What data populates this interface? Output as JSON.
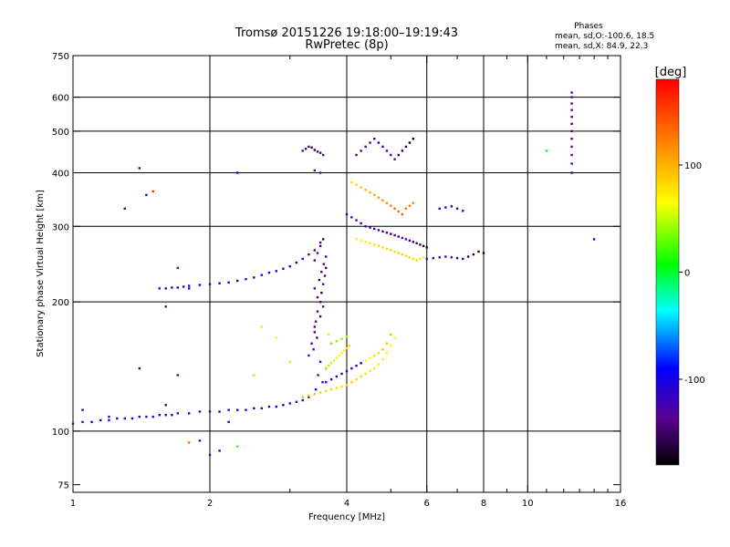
{
  "chart_data": {
    "type": "scatter",
    "title": "Tromsø 20151226 19:18:00–19:19:43",
    "subtitle": "RwPretec (8p)",
    "xlabel": "Frequency [MHz]",
    "ylabel": "Stationary phase Virtual Height [km]",
    "x_scale": "log",
    "y_scale": "log",
    "xlim": [
      1,
      16
    ],
    "ylim": [
      72,
      750
    ],
    "x_ticks": [
      1,
      2,
      4,
      6,
      8,
      10,
      16
    ],
    "x_tick_labels": [
      "1",
      "2",
      "4",
      "6",
      "8",
      "10",
      "16"
    ],
    "x_minor_ticks": [
      3,
      5,
      7,
      9,
      11,
      12,
      13,
      14,
      15
    ],
    "y_ticks": [
      75,
      100,
      200,
      300,
      400,
      500,
      600,
      750
    ],
    "y_tick_labels": [
      "75",
      "100",
      "200",
      "300",
      "400",
      "500",
      "600",
      "750"
    ],
    "grid": true,
    "grid_x": [
      2,
      4,
      6,
      8,
      10
    ],
    "grid_y": [
      100,
      200,
      300,
      400,
      500,
      600
    ],
    "phases": {
      "title": "Phases",
      "line1": "mean, sd,O:-100.6, 18.5",
      "line2": "mean, sd,X:  84.9, 22.3"
    },
    "colorbar": {
      "label": "[deg]",
      "min": -180,
      "max": 180,
      "ticks": [
        100,
        0,
        -100
      ],
      "tick_labels": [
        "100",
        "0",
        "-100"
      ]
    },
    "series": [
      {
        "x": [
          1.0,
          1.05,
          1.1,
          1.15,
          1.2,
          1.25,
          1.3,
          1.35,
          1.4,
          1.45,
          1.5,
          1.55,
          1.6,
          1.65,
          1.7,
          1.8,
          1.9,
          2.0,
          2.1,
          2.2,
          2.3,
          2.4,
          2.5,
          2.6,
          2.7,
          2.8,
          2.9,
          3.0,
          3.1,
          3.2,
          3.3
        ],
        "y": [
          104,
          105,
          105,
          106,
          106,
          107,
          107,
          107,
          108,
          108,
          108,
          109,
          109,
          109,
          110,
          110,
          111,
          111,
          111,
          112,
          112,
          112,
          113,
          113,
          114,
          114,
          115,
          116,
          117,
          118,
          120
        ],
        "phase": [
          -110,
          -108,
          -110,
          -105,
          -112,
          -108,
          -110,
          -106,
          -110,
          -109,
          -112,
          -108,
          -110,
          -106,
          -110,
          -108,
          -110,
          -112,
          -108,
          -110,
          -106,
          -110,
          -108,
          -112,
          -110,
          -108,
          -106,
          -110,
          -112,
          -108,
          -110
        ]
      },
      {
        "x": [
          1.6,
          1.65,
          1.7,
          1.75,
          1.8,
          1.9,
          2.0,
          2.1,
          2.2,
          2.3,
          2.4,
          2.5,
          2.6,
          2.7,
          2.8,
          2.9,
          3.0,
          3.1,
          3.2,
          3.3,
          3.4,
          3.5
        ],
        "y": [
          215,
          216,
          216,
          217,
          218,
          219,
          220,
          221,
          222,
          224,
          226,
          228,
          231,
          234,
          236,
          239,
          242,
          247,
          252,
          258,
          264,
          275
        ],
        "phase": [
          -115,
          -112,
          -110,
          -108,
          -106,
          -104,
          -102,
          -100,
          -98,
          -100,
          -102,
          -104,
          -106,
          -108,
          -110,
          -112,
          -115,
          -118,
          -120,
          -125,
          -130,
          -135
        ]
      },
      {
        "x": [
          3.3,
          3.35,
          3.4,
          3.42,
          3.45,
          3.5,
          3.52,
          3.55,
          3.58,
          3.6,
          3.4,
          3.45,
          3.5,
          3.55,
          3.6,
          3.4,
          3.5,
          3.55,
          3.45,
          3.4,
          3.48,
          3.52,
          3.56,
          3.44,
          3.38,
          3.5,
          3.6,
          3.46,
          3.54,
          3.42
        ],
        "y": [
          150,
          160,
          170,
          180,
          190,
          200,
          210,
          220,
          230,
          240,
          250,
          260,
          270,
          280,
          255,
          175,
          185,
          195,
          205,
          215,
          225,
          235,
          245,
          165,
          155,
          145,
          140,
          135,
          130,
          125
        ],
        "phase": [
          -130,
          -140,
          -150,
          -135,
          -125,
          -145,
          -155,
          -130,
          -140,
          -150,
          -135,
          -125,
          -145,
          -160,
          -130,
          -140,
          -150,
          -135,
          -125,
          -145,
          -155,
          -130,
          -140,
          -150,
          -135,
          -125,
          -110,
          -120,
          -115,
          -105
        ]
      },
      {
        "x": [
          3.2,
          3.25,
          3.3,
          3.35,
          3.4,
          3.45,
          3.5,
          3.55,
          3.4,
          3.5
        ],
        "y": [
          450,
          455,
          460,
          458,
          452,
          448,
          445,
          440,
          405,
          400
        ],
        "phase": [
          -140,
          -145,
          -150,
          -155,
          -160,
          -150,
          -145,
          -140,
          -130,
          -135
        ]
      },
      {
        "x": [
          3.2,
          3.3,
          3.4,
          3.5,
          3.6,
          3.7,
          3.8,
          3.9,
          4.0,
          4.1,
          4.2,
          4.3,
          4.4,
          4.5,
          4.6,
          4.7,
          4.8,
          4.9,
          5.0,
          5.1
        ],
        "y": [
          120,
          121,
          122,
          123,
          124,
          125,
          126,
          127,
          128,
          130,
          132,
          134,
          136,
          138,
          140,
          143,
          147,
          152,
          158,
          165
        ],
        "phase": [
          95,
          92,
          90,
          88,
          86,
          84,
          82,
          80,
          84,
          88,
          85,
          82,
          80,
          78,
          76,
          74,
          72,
          70,
          68,
          65
        ]
      },
      {
        "x": [
          3.6,
          3.7,
          3.8,
          3.9,
          4.0,
          4.1,
          4.2,
          4.3,
          4.4,
          4.5,
          4.6,
          4.7,
          4.8,
          4.9,
          5.0
        ],
        "y": [
          130,
          132,
          134,
          136,
          138,
          140,
          142,
          144,
          146,
          148,
          150,
          152,
          155,
          160,
          168
        ],
        "phase": [
          -120,
          -118,
          -115,
          -112,
          -110,
          -108,
          -106,
          -104,
          60,
          70,
          80,
          85,
          90,
          95,
          100
        ]
      },
      {
        "x": [
          3.6,
          3.65,
          3.7,
          3.75,
          3.8,
          3.85,
          3.9,
          3.95,
          4.0,
          4.05,
          3.7,
          3.8,
          3.9,
          4.0,
          3.65
        ],
        "y": [
          140,
          142,
          144,
          146,
          148,
          150,
          152,
          154,
          156,
          158,
          160,
          162,
          164,
          166,
          168
        ],
        "phase": [
          40,
          45,
          50,
          55,
          60,
          65,
          70,
          75,
          80,
          85,
          30,
          35,
          40,
          45,
          50
        ]
      },
      {
        "x": [
          4.2,
          4.3,
          4.4,
          4.5,
          4.6,
          4.7,
          4.8,
          4.9,
          5.0,
          5.1,
          5.2,
          5.3,
          5.4,
          5.5,
          5.6,
          5.7,
          5.8,
          5.9
        ],
        "y": [
          280,
          278,
          276,
          274,
          272,
          270,
          268,
          266,
          264,
          262,
          260,
          258,
          256,
          254,
          252,
          250,
          252,
          254
        ],
        "phase": [
          70,
          72,
          74,
          76,
          78,
          80,
          82,
          84,
          86,
          88,
          90,
          88,
          86,
          84,
          82,
          80,
          78,
          76
        ]
      },
      {
        "x": [
          4.0,
          4.1,
          4.2,
          4.3,
          4.4,
          4.5,
          4.6,
          4.7,
          4.8,
          4.9,
          5.0,
          5.1,
          5.2,
          5.3,
          5.4,
          5.5,
          5.6,
          5.7,
          5.8,
          5.9,
          6.0
        ],
        "y": [
          320,
          315,
          310,
          305,
          300,
          298,
          296,
          294,
          292,
          290,
          288,
          286,
          284,
          282,
          280,
          278,
          276,
          274,
          272,
          270,
          268
        ],
        "phase": [
          -120,
          -125,
          -130,
          -115,
          -120,
          -125,
          -130,
          -135,
          -140,
          -145,
          -150,
          -125,
          -120,
          -130,
          -135,
          -140,
          -145,
          -150,
          -155,
          -160,
          -165
        ]
      },
      {
        "x": [
          4.2,
          4.3,
          4.4,
          4.5,
          4.6,
          4.7,
          4.8,
          4.9,
          5.0,
          5.1,
          5.2,
          5.3,
          5.4,
          5.5,
          5.6
        ],
        "y": [
          440,
          450,
          460,
          470,
          480,
          470,
          460,
          450,
          440,
          430,
          440,
          450,
          460,
          470,
          480
        ],
        "phase": [
          -140,
          -135,
          -130,
          -125,
          -120,
          -115,
          -120,
          -125,
          -130,
          -135,
          -150,
          -155,
          -160,
          -165,
          -170
        ]
      },
      {
        "x": [
          4.1,
          4.2,
          4.3,
          4.4,
          4.5,
          4.6,
          4.7,
          4.8,
          4.9,
          5.0,
          5.1,
          5.2,
          5.3,
          5.4,
          5.5,
          5.6
        ],
        "y": [
          380,
          375,
          370,
          365,
          360,
          355,
          350,
          345,
          340,
          335,
          330,
          325,
          320,
          330,
          335,
          340
        ],
        "phase": [
          80,
          85,
          90,
          95,
          100,
          105,
          110,
          115,
          120,
          125,
          130,
          135,
          140,
          130,
          125,
          120
        ]
      },
      {
        "x": [
          6.0,
          6.2,
          6.4,
          6.6,
          6.8,
          7.0,
          7.2,
          7.4,
          7.6,
          7.8,
          8.0
        ],
        "y": [
          252,
          253,
          254,
          255,
          254,
          253,
          252,
          255,
          258,
          262,
          260
        ],
        "phase": [
          -120,
          -125,
          -130,
          -135,
          -140,
          -145,
          -150,
          -155,
          -160,
          -165,
          -170
        ]
      },
      {
        "x": [
          6.4,
          6.6,
          6.8,
          7.0,
          7.2
        ],
        "y": [
          330,
          332,
          334,
          330,
          326
        ],
        "phase": [
          -115,
          -118,
          -120,
          -122,
          -125
        ]
      },
      {
        "x": [
          12.5,
          12.5,
          12.5,
          12.5,
          12.5,
          12.5,
          12.5,
          12.5,
          12.5,
          12.5,
          12.5,
          12.5
        ],
        "y": [
          400,
          420,
          440,
          460,
          480,
          500,
          520,
          540,
          560,
          580,
          600,
          615
        ],
        "phase": [
          -120,
          -125,
          -130,
          -135,
          -140,
          -145,
          -150,
          -145,
          -140,
          -135,
          -130,
          -125
        ]
      },
      {
        "x": [
          1.05,
          1.2,
          1.3,
          1.4,
          1.45,
          1.55,
          1.6,
          1.7,
          1.8,
          1.9,
          2.0,
          2.1,
          2.2,
          2.3,
          2.5,
          2.6,
          2.8,
          3.0,
          11.0,
          14.0,
          1.4,
          1.7,
          1.6,
          1.8,
          2.3,
          1.5
        ],
        "y": [
          112,
          108,
          330,
          410,
          355,
          215,
          195,
          240,
          215,
          95,
          88,
          90,
          105,
          400,
          135,
          175,
          165,
          145,
          450,
          280,
          140,
          135,
          115,
          94,
          92,
          362
        ],
        "phase": [
          -110,
          -120,
          -115,
          -125,
          -110,
          -120,
          -130,
          -140,
          -115,
          -130,
          -125,
          -120,
          -110,
          -100,
          40,
          75,
          60,
          50,
          5,
          -100,
          -115,
          -120,
          -110,
          130,
          20,
          160
        ]
      }
    ]
  }
}
